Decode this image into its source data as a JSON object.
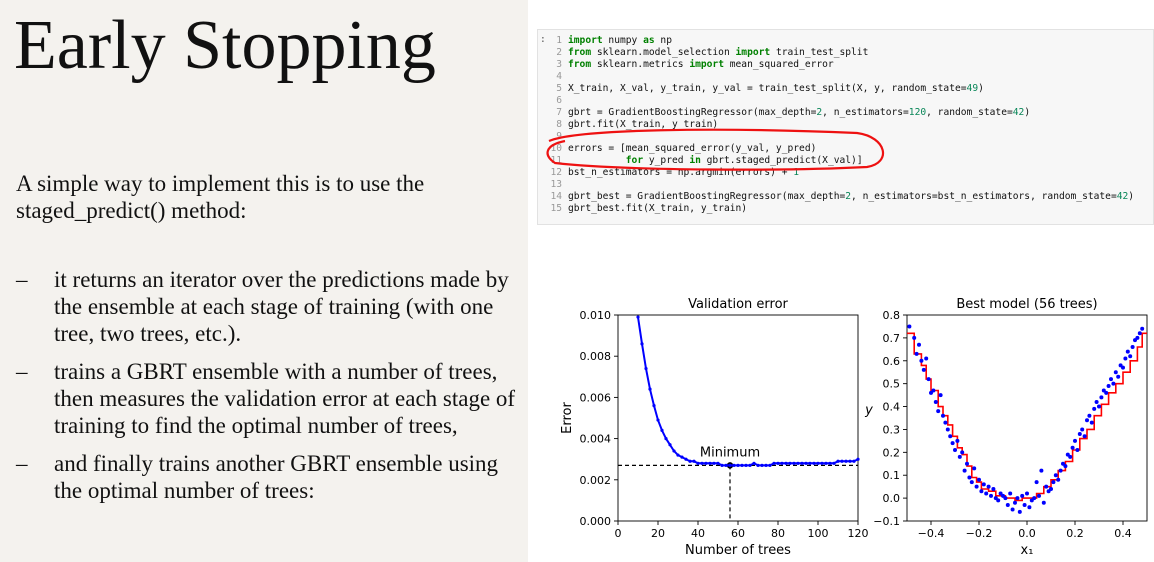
{
  "slide": {
    "title": "Early Stopping",
    "intro": "A simple way to implement this is to use the staged_predict() method:",
    "bullets": [
      "it returns an iterator over the predictions made by the ensemble at each stage of training (with one tree, two trees, etc.).",
      "trains a GBRT ensemble with a number of trees, then measures the validation error at each stage of training to find the optimal number of trees,",
      "and finally trains another GBRT ensemble using the optimal number of trees:"
    ],
    "bullet_marker": "–"
  },
  "code": {
    "prompt": ":",
    "lines": [
      {
        "n": "1",
        "segs": [
          [
            "kw",
            "import"
          ],
          [
            "t",
            " numpy "
          ],
          [
            "kw",
            "as"
          ],
          [
            "t",
            " np"
          ]
        ]
      },
      {
        "n": "2",
        "segs": [
          [
            "kw",
            "from"
          ],
          [
            "t",
            " sklearn.model_selection "
          ],
          [
            "kw",
            "import"
          ],
          [
            "t",
            " train_test_split"
          ]
        ]
      },
      {
        "n": "3",
        "segs": [
          [
            "kw",
            "from"
          ],
          [
            "t",
            " sklearn.metrics "
          ],
          [
            "kw",
            "import"
          ],
          [
            "t",
            " mean_squared_error"
          ]
        ]
      },
      {
        "n": "4",
        "segs": []
      },
      {
        "n": "5",
        "segs": [
          [
            "t",
            "X_train, X_val, y_train, y_val = train_test_split(X, y, random_state="
          ],
          [
            "num",
            "49"
          ],
          [
            "t",
            ")"
          ]
        ]
      },
      {
        "n": "6",
        "segs": []
      },
      {
        "n": "7",
        "segs": [
          [
            "t",
            "gbrt = GradientBoostingRegressor(max_depth="
          ],
          [
            "num",
            "2"
          ],
          [
            "t",
            ", n_estimators="
          ],
          [
            "num",
            "120"
          ],
          [
            "t",
            ", random_state="
          ],
          [
            "num",
            "42"
          ],
          [
            "t",
            ")"
          ]
        ]
      },
      {
        "n": "8",
        "segs": [
          [
            "t",
            "gbrt.fit(X_train, y_train)"
          ]
        ]
      },
      {
        "n": "9",
        "segs": []
      },
      {
        "n": "10",
        "segs": [
          [
            "t",
            "errors = [mean_squared_error(y_val, y_pred)"
          ]
        ]
      },
      {
        "n": "11",
        "segs": [
          [
            "t",
            "          "
          ],
          [
            "kw",
            "for"
          ],
          [
            "t",
            " y_pred "
          ],
          [
            "kw",
            "in"
          ],
          [
            "t",
            " gbrt.staged_predict(X_val)]"
          ]
        ]
      },
      {
        "n": "12",
        "segs": [
          [
            "t",
            "bst_n_estimators = np.argmin(errors) + "
          ],
          [
            "num",
            "1"
          ]
        ]
      },
      {
        "n": "13",
        "segs": []
      },
      {
        "n": "14",
        "segs": [
          [
            "t",
            "gbrt_best = GradientBoostingRegressor(max_depth="
          ],
          [
            "num",
            "2"
          ],
          [
            "t",
            ", n_estimators=bst_n_estimators, random_state="
          ],
          [
            "num",
            "42"
          ],
          [
            "t",
            ")"
          ]
        ]
      },
      {
        "n": "15",
        "segs": [
          [
            "t",
            "gbrt_best.fit(X_train, y_train)"
          ]
        ]
      }
    ]
  },
  "chart_data": [
    {
      "type": "line",
      "title": "Validation error",
      "xlabel": "Number of trees",
      "ylabel": "Error",
      "xlim": [
        0,
        120
      ],
      "ylim": [
        0.0,
        0.01
      ],
      "xticks": [
        0,
        20,
        40,
        60,
        80,
        100,
        120
      ],
      "yticks": [
        "0.000",
        "0.002",
        "0.004",
        "0.006",
        "0.008",
        "0.010"
      ],
      "annotation": {
        "text": "Minimum",
        "x": 56,
        "y": 0.0027
      },
      "series_color": "#0000ff",
      "x": [
        10,
        12,
        14,
        16,
        18,
        20,
        22,
        24,
        26,
        28,
        30,
        32,
        34,
        36,
        38,
        40,
        42,
        44,
        46,
        48,
        50,
        52,
        54,
        56,
        58,
        60,
        62,
        64,
        66,
        68,
        70,
        72,
        74,
        76,
        78,
        80,
        82,
        84,
        86,
        88,
        90,
        92,
        94,
        96,
        98,
        100,
        102,
        104,
        106,
        108,
        110,
        112,
        114,
        116,
        118,
        120
      ],
      "y": [
        0.0099,
        0.0086,
        0.0074,
        0.0064,
        0.0056,
        0.0049,
        0.0044,
        0.004,
        0.0037,
        0.0034,
        0.0032,
        0.0031,
        0.003,
        0.0029,
        0.0029,
        0.0028,
        0.0028,
        0.0028,
        0.0028,
        0.0028,
        0.0028,
        0.0027,
        0.0027,
        0.0027,
        0.0027,
        0.0027,
        0.0027,
        0.0027,
        0.0027,
        0.0028,
        0.0027,
        0.0027,
        0.0027,
        0.0027,
        0.0028,
        0.0028,
        0.0028,
        0.0028,
        0.0028,
        0.0028,
        0.0028,
        0.0028,
        0.0028,
        0.0028,
        0.0028,
        0.0028,
        0.0028,
        0.0028,
        0.0028,
        0.0028,
        0.0029,
        0.0029,
        0.0029,
        0.0029,
        0.0029,
        0.003
      ]
    },
    {
      "type": "scatter",
      "title": "Best model (56 trees)",
      "xlabel": "x₁",
      "ylabel": "y",
      "xlim": [
        -0.5,
        0.5
      ],
      "ylim": [
        -0.1,
        0.8
      ],
      "xticks": [
        "−0.4",
        "−0.2",
        "0.0",
        "0.2",
        "0.4"
      ],
      "xtick_values": [
        -0.4,
        -0.2,
        0.0,
        0.2,
        0.4
      ],
      "yticks": [
        "−0.1",
        "0.0",
        "0.1",
        "0.2",
        "0.3",
        "0.4",
        "0.5",
        "0.6",
        "0.7",
        "0.8"
      ],
      "point_color": "#0000ff",
      "step_color": "#ff0000",
      "points_x": [
        -0.49,
        -0.47,
        -0.46,
        -0.45,
        -0.44,
        -0.43,
        -0.42,
        -0.41,
        -0.4,
        -0.39,
        -0.38,
        -0.37,
        -0.36,
        -0.35,
        -0.34,
        -0.33,
        -0.32,
        -0.31,
        -0.3,
        -0.29,
        -0.28,
        -0.27,
        -0.26,
        -0.25,
        -0.24,
        -0.23,
        -0.22,
        -0.21,
        -0.2,
        -0.19,
        -0.18,
        -0.17,
        -0.16,
        -0.15,
        -0.14,
        -0.13,
        -0.12,
        -0.11,
        -0.1,
        -0.09,
        -0.08,
        -0.07,
        -0.06,
        -0.05,
        -0.04,
        -0.03,
        -0.02,
        -0.01,
        0.0,
        0.01,
        0.02,
        0.03,
        0.04,
        0.05,
        0.06,
        0.07,
        0.08,
        0.09,
        0.1,
        0.11,
        0.12,
        0.13,
        0.14,
        0.15,
        0.16,
        0.17,
        0.18,
        0.19,
        0.2,
        0.21,
        0.22,
        0.23,
        0.24,
        0.25,
        0.26,
        0.27,
        0.28,
        0.29,
        0.3,
        0.31,
        0.32,
        0.33,
        0.34,
        0.35,
        0.36,
        0.37,
        0.38,
        0.39,
        0.4,
        0.41,
        0.42,
        0.43,
        0.44,
        0.45,
        0.46,
        0.47,
        0.48
      ],
      "points_y": [
        0.75,
        0.7,
        0.63,
        0.67,
        0.6,
        0.56,
        0.61,
        0.52,
        0.46,
        0.47,
        0.42,
        0.38,
        0.45,
        0.36,
        0.33,
        0.3,
        0.27,
        0.24,
        0.21,
        0.25,
        0.18,
        0.2,
        0.12,
        0.15,
        0.09,
        0.07,
        0.13,
        0.05,
        0.08,
        0.03,
        0.06,
        0.02,
        0.05,
        0.01,
        0.04,
        0.0,
        -0.01,
        0.02,
        0.01,
        0.0,
        -0.03,
        0.02,
        -0.05,
        -0.02,
        0.0,
        -0.06,
        0.01,
        -0.03,
        0.02,
        -0.04,
        -0.01,
        0.0,
        0.07,
        0.01,
        0.12,
        -0.02,
        0.05,
        0.03,
        0.04,
        0.07,
        0.1,
        0.08,
        0.12,
        0.15,
        0.14,
        0.19,
        0.18,
        0.22,
        0.25,
        0.21,
        0.28,
        0.3,
        0.27,
        0.34,
        0.36,
        0.33,
        0.39,
        0.42,
        0.4,
        0.44,
        0.47,
        0.46,
        0.49,
        0.52,
        0.5,
        0.55,
        0.53,
        0.58,
        0.57,
        0.61,
        0.64,
        0.62,
        0.66,
        0.69,
        0.7,
        0.72,
        0.74
      ],
      "steps": [
        [
          -0.5,
          0.72
        ],
        [
          -0.47,
          0.63
        ],
        [
          -0.44,
          0.58
        ],
        [
          -0.42,
          0.52
        ],
        [
          -0.4,
          0.47
        ],
        [
          -0.37,
          0.4
        ],
        [
          -0.35,
          0.36
        ],
        [
          -0.33,
          0.32
        ],
        [
          -0.31,
          0.27
        ],
        [
          -0.29,
          0.22
        ],
        [
          -0.27,
          0.19
        ],
        [
          -0.25,
          0.14
        ],
        [
          -0.23,
          0.09
        ],
        [
          -0.21,
          0.07
        ],
        [
          -0.19,
          0.04
        ],
        [
          -0.16,
          0.03
        ],
        [
          -0.13,
          0.01
        ],
        [
          -0.09,
          0.0
        ],
        [
          -0.05,
          -0.01
        ],
        [
          -0.02,
          0.0
        ],
        [
          0.04,
          0.02
        ],
        [
          0.07,
          0.05
        ],
        [
          0.1,
          0.08
        ],
        [
          0.13,
          0.12
        ],
        [
          0.16,
          0.16
        ],
        [
          0.19,
          0.21
        ],
        [
          0.22,
          0.26
        ],
        [
          0.25,
          0.3
        ],
        [
          0.28,
          0.36
        ],
        [
          0.31,
          0.41
        ],
        [
          0.34,
          0.46
        ],
        [
          0.37,
          0.5
        ],
        [
          0.4,
          0.55
        ],
        [
          0.43,
          0.6
        ],
        [
          0.46,
          0.66
        ],
        [
          0.48,
          0.72
        ]
      ]
    }
  ]
}
